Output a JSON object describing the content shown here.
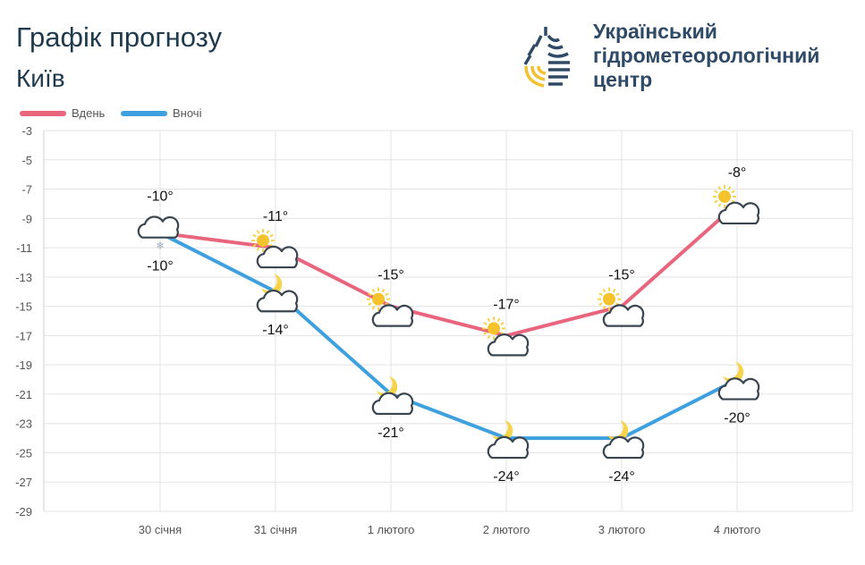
{
  "header": {
    "title": "Графік прогнозу",
    "city": "Київ"
  },
  "organization": {
    "line1": "Український",
    "line2": "гідрометеорологічний",
    "line3": "центр"
  },
  "chart_data": {
    "type": "line",
    "categories": [
      "30 січня",
      "31 січня",
      "1 лютого",
      "2 лютого",
      "3 лютого",
      "4 лютого"
    ],
    "series": [
      {
        "name": "Вдень",
        "color": "#e9657e",
        "values": [
          -10,
          -11,
          -15,
          -17,
          -15,
          -8
        ],
        "labels": [
          "-10°",
          "-11°",
          "-15°",
          "-17°",
          "-15°",
          "-8°"
        ],
        "icons": [
          "cloud-snow-icon",
          "sun-cloud-icon",
          "sun-cloud-icon",
          "sun-cloud-icon",
          "sun-cloud-icon",
          "sun-cloud-icon"
        ]
      },
      {
        "name": "Вночі",
        "color": "#3ea0de",
        "values": [
          -10,
          -14,
          -21,
          -24,
          -24,
          -20
        ],
        "labels": [
          "-10°",
          "-14°",
          "-21°",
          "-24°",
          "-24°",
          "-20°"
        ],
        "icons": [
          "cloud-snow-icon",
          "moon-cloud-icon",
          "moon-cloud-icon",
          "moon-cloud-icon",
          "moon-cloud-icon",
          "moon-cloud-icon"
        ]
      }
    ],
    "yticks": [
      "-3",
      "-5",
      "-7",
      "-9",
      "-11",
      "-13",
      "-15",
      "-17",
      "-19",
      "-21",
      "-23",
      "-25",
      "-27",
      "-29"
    ],
    "ylim": [
      -29,
      -3
    ],
    "grid": true,
    "legend": "top-left"
  }
}
